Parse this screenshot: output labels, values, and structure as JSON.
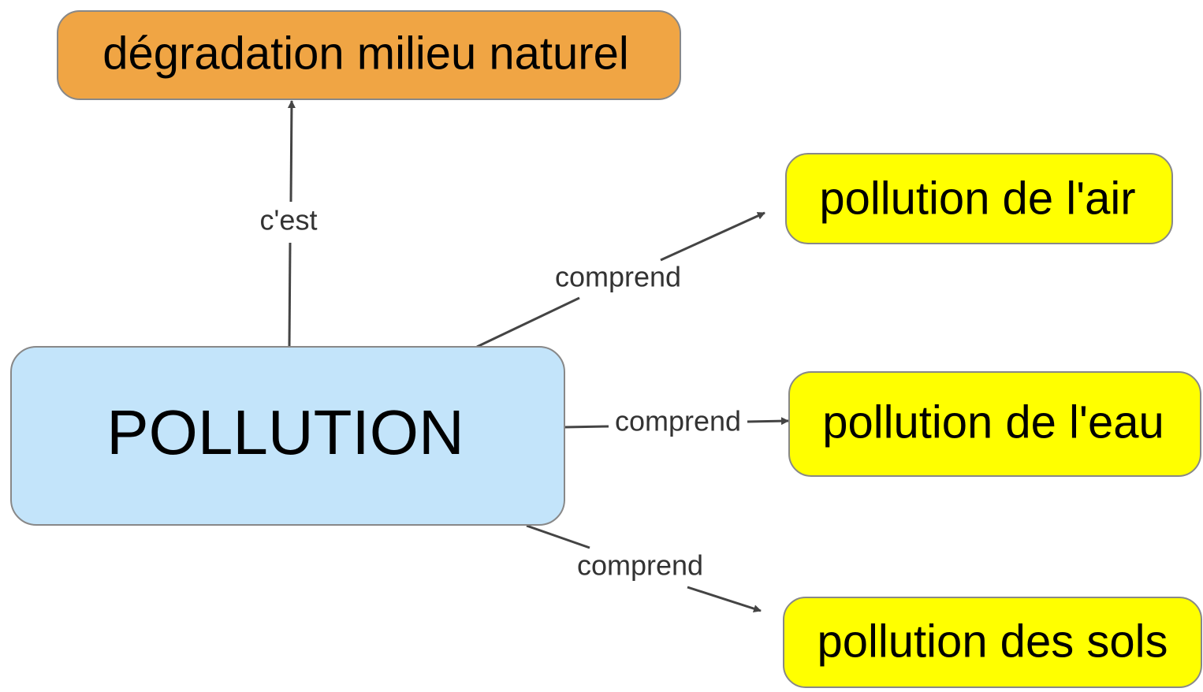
{
  "nodes": [
    {
      "label": "dégradation milieu naturel"
    },
    {
      "label": "POLLUTION"
    },
    {
      "label": "pollution de l'air"
    },
    {
      "label": "pollution de l'eau"
    },
    {
      "label": "pollution des sols"
    }
  ],
  "edges": [
    {
      "label": "c'est"
    },
    {
      "label": "comprend"
    },
    {
      "label": "comprend"
    },
    {
      "label": "comprend"
    }
  ]
}
